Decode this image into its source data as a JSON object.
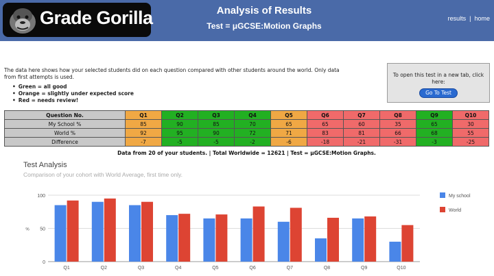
{
  "header": {
    "logo_text": "Grade Gorilla",
    "title": "Analysis of Results",
    "subtitle": "Test = μGCSE:Motion Graphs",
    "nav": {
      "results": "results",
      "separator": "|",
      "home": "home"
    },
    "bg_color": "#4a6aa8"
  },
  "intro": {
    "text": "The data here shows how your selected students did on each question compared with other students around the world. Only data from first attempts is used.",
    "legend": [
      "Green = all good",
      "Orange = slightly under expected score",
      "Red = needs review!"
    ]
  },
  "open_box": {
    "text": "To open this test in a new tab, click here:",
    "button": "Go To Test"
  },
  "table": {
    "header_label": "Question No.",
    "questions": [
      "Q1",
      "Q2",
      "Q3",
      "Q4",
      "Q5",
      "Q6",
      "Q7",
      "Q8",
      "Q9",
      "Q10"
    ],
    "status": [
      "orange",
      "green",
      "green",
      "green",
      "orange",
      "red",
      "red",
      "red",
      "green",
      "red"
    ],
    "rows": [
      {
        "label": "My School %",
        "values": [
          "85",
          "90",
          "85",
          "70",
          "65",
          "65",
          "60",
          "35",
          "65",
          "30"
        ]
      },
      {
        "label": "World %",
        "values": [
          "92",
          "95",
          "90",
          "72",
          "71",
          "83",
          "81",
          "66",
          "68",
          "55"
        ]
      },
      {
        "label": "Difference",
        "values": [
          "-7",
          "-5",
          "-5",
          "-2",
          "-6",
          "-18",
          "-21",
          "-31",
          "-3",
          "-25"
        ]
      }
    ]
  },
  "summary": "Data from 20 of your students.    |   Total Worldwide = 12621   |   Test = μGCSE:Motion Graphs.",
  "chart_data": {
    "type": "bar",
    "title": "Test Analysis",
    "subtitle": "Comparison of your cohort with World Average, first time only.",
    "ylabel": "%",
    "categories": [
      "Q1",
      "Q2",
      "Q3",
      "Q4",
      "Q5",
      "Q6",
      "Q7",
      "Q8",
      "Q9",
      "Q10"
    ],
    "ylim": [
      0,
      100
    ],
    "yticks": [
      0,
      50,
      100
    ],
    "grid": true,
    "legend_position": "right",
    "series": [
      {
        "name": "My school",
        "color": "#4a86e8",
        "values": [
          85,
          90,
          85,
          70,
          65,
          65,
          60,
          35,
          65,
          30
        ]
      },
      {
        "name": "World",
        "color": "#dd4433",
        "values": [
          92,
          95,
          90,
          72,
          71,
          83,
          81,
          66,
          68,
          55
        ]
      }
    ]
  }
}
